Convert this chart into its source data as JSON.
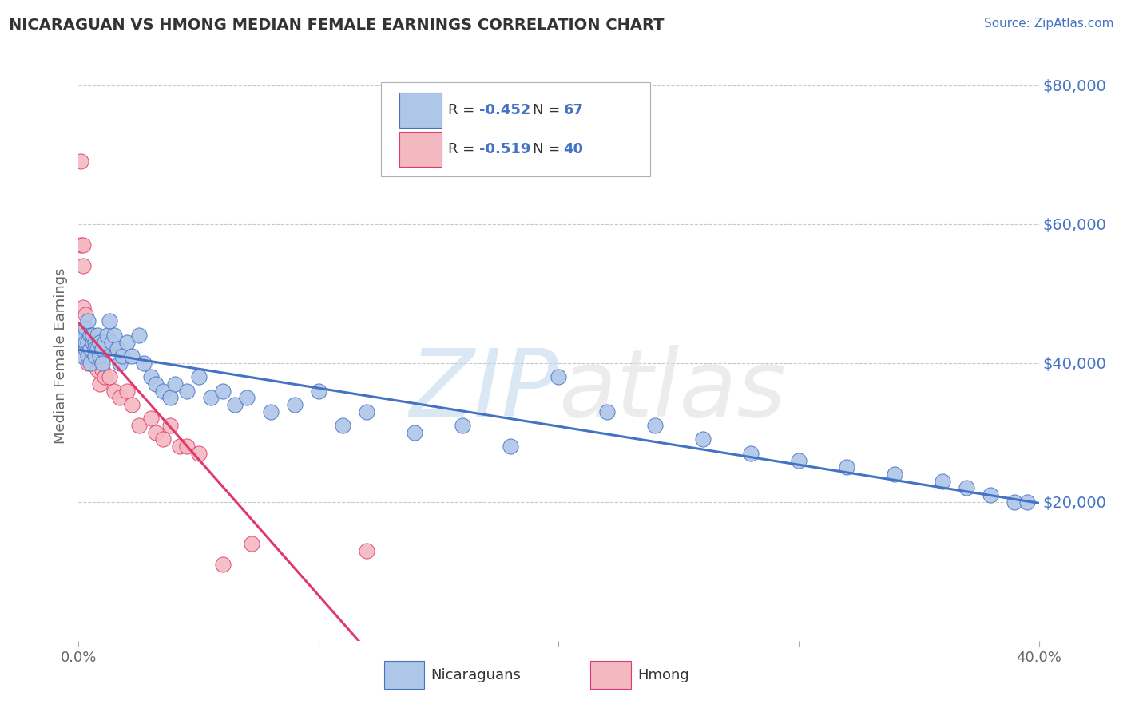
{
  "title": "NICARAGUAN VS HMONG MEDIAN FEMALE EARNINGS CORRELATION CHART",
  "source": "Source: ZipAtlas.com",
  "ylabel": "Median Female Earnings",
  "x_min": 0.0,
  "x_max": 0.4,
  "y_min": 0,
  "y_max": 82000,
  "y_ticks": [
    20000,
    40000,
    60000,
    80000
  ],
  "y_tick_labels": [
    "$20,000",
    "$40,000",
    "$60,000",
    "$80,000"
  ],
  "legend_label1": "Nicaraguans",
  "legend_label2": "Hmong",
  "R1": -0.452,
  "N1": 67,
  "R2": -0.519,
  "N2": 40,
  "color_nicaraguan": "#aec6e8",
  "color_hmong": "#f4b8c1",
  "line_color_nicaraguan": "#4472c4",
  "line_color_hmong": "#e0396e",
  "background_color": "#ffffff",
  "grid_color": "#c8c8c8",
  "title_color": "#333333",
  "source_color": "#4472c4",
  "axis_label_color": "#666666",
  "tick_color_y": "#4472c4",
  "tick_color_x": "#666666",
  "nicaraguan_x": [
    0.001,
    0.002,
    0.002,
    0.003,
    0.003,
    0.003,
    0.004,
    0.004,
    0.004,
    0.005,
    0.005,
    0.005,
    0.006,
    0.006,
    0.007,
    0.007,
    0.007,
    0.008,
    0.008,
    0.009,
    0.009,
    0.01,
    0.01,
    0.011,
    0.012,
    0.013,
    0.014,
    0.015,
    0.016,
    0.017,
    0.018,
    0.02,
    0.022,
    0.025,
    0.027,
    0.03,
    0.032,
    0.035,
    0.038,
    0.04,
    0.045,
    0.05,
    0.055,
    0.06,
    0.065,
    0.07,
    0.08,
    0.09,
    0.1,
    0.11,
    0.12,
    0.14,
    0.16,
    0.18,
    0.2,
    0.22,
    0.24,
    0.26,
    0.28,
    0.3,
    0.32,
    0.34,
    0.36,
    0.37,
    0.38,
    0.39,
    0.395
  ],
  "nicaraguan_y": [
    43000,
    44000,
    41000,
    42000,
    43000,
    45000,
    41000,
    43000,
    46000,
    44000,
    42000,
    40000,
    43000,
    44000,
    43000,
    42000,
    41000,
    44000,
    42000,
    41000,
    43000,
    42000,
    40000,
    43000,
    44000,
    46000,
    43000,
    44000,
    42000,
    40000,
    41000,
    43000,
    41000,
    44000,
    40000,
    38000,
    37000,
    36000,
    35000,
    37000,
    36000,
    38000,
    35000,
    36000,
    34000,
    35000,
    33000,
    34000,
    36000,
    31000,
    33000,
    30000,
    31000,
    28000,
    38000,
    33000,
    31000,
    29000,
    27000,
    26000,
    25000,
    24000,
    23000,
    22000,
    21000,
    20000,
    20000
  ],
  "hmong_x": [
    0.001,
    0.001,
    0.002,
    0.002,
    0.002,
    0.003,
    0.003,
    0.003,
    0.004,
    0.004,
    0.004,
    0.005,
    0.005,
    0.005,
    0.006,
    0.006,
    0.007,
    0.007,
    0.008,
    0.008,
    0.009,
    0.01,
    0.011,
    0.012,
    0.013,
    0.015,
    0.017,
    0.02,
    0.022,
    0.025,
    0.03,
    0.032,
    0.035,
    0.038,
    0.042,
    0.045,
    0.05,
    0.06,
    0.072,
    0.12
  ],
  "hmong_y": [
    69000,
    57000,
    57000,
    54000,
    48000,
    47000,
    44000,
    42000,
    43000,
    42000,
    40000,
    43000,
    44000,
    42000,
    43000,
    41000,
    43000,
    42000,
    39000,
    41000,
    37000,
    39000,
    38000,
    42000,
    38000,
    36000,
    35000,
    36000,
    34000,
    31000,
    32000,
    30000,
    29000,
    31000,
    28000,
    28000,
    27000,
    11000,
    14000,
    13000
  ]
}
